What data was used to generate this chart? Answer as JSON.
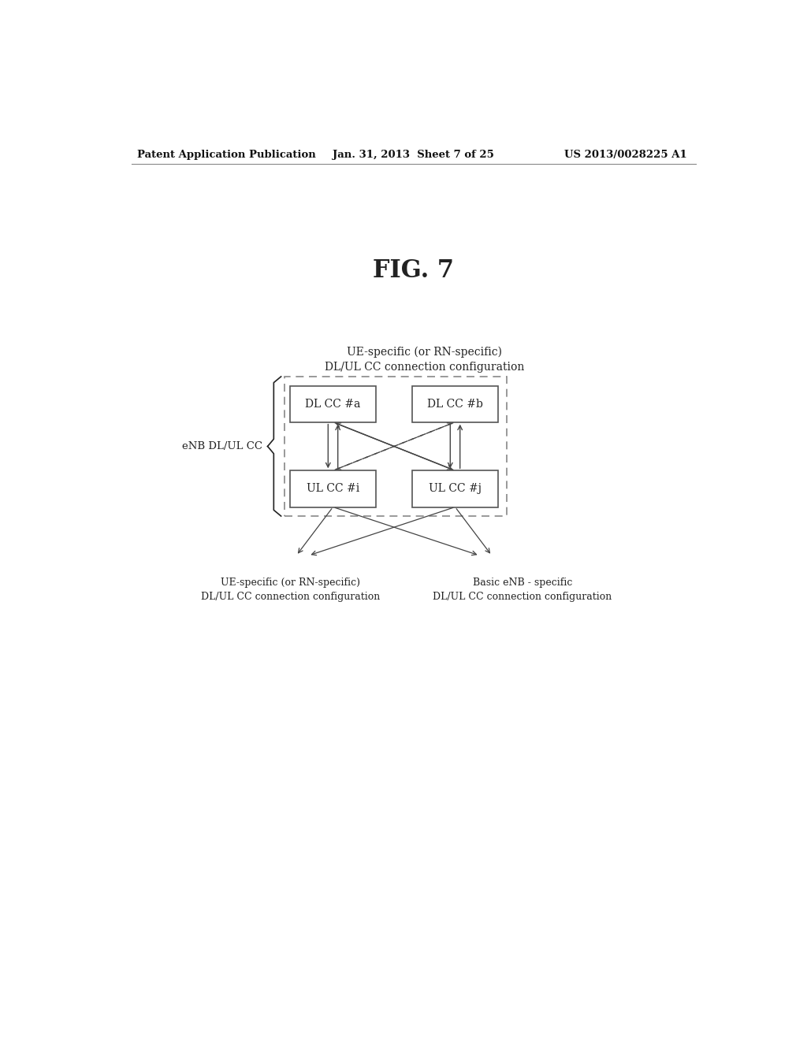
{
  "fig_title": "FIG. 7",
  "header_left": "Patent Application Publication",
  "header_mid": "Jan. 31, 2013  Sheet 7 of 25",
  "header_right": "US 2013/0028225 A1",
  "top_label_line1": "UE-specific (or RN-specific)",
  "top_label_line2": "DL/UL CC connection configuration",
  "left_label": "eNB DL/UL CC",
  "box_dl_a": "DL CC #a",
  "box_dl_b": "DL CC #b",
  "box_ul_i": "UL CC #i",
  "box_ul_j": "UL CC #j",
  "bottom_left_line1": "UE-specific (or RN-specific)",
  "bottom_left_line2": "DL/UL CC connection configuration",
  "bottom_right_line1": "Basic eNB - specific",
  "bottom_right_line2": "DL/UL CC connection configuration",
  "bg_color": "#ffffff",
  "box_edge_color": "#555555",
  "dashed_outer_color": "#888888",
  "arrow_color": "#444444",
  "text_color": "#222222",
  "header_color": "#111111"
}
